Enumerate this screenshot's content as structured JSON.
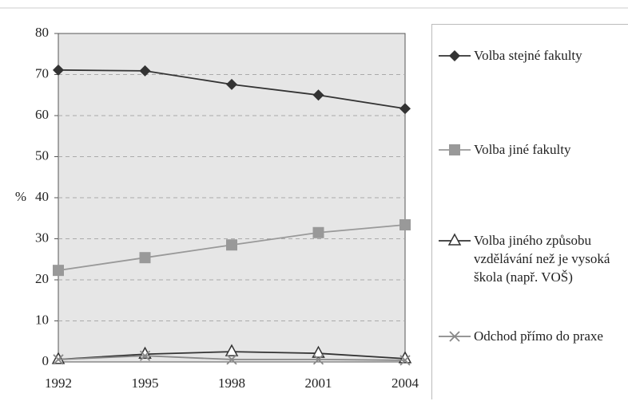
{
  "chart_data": {
    "type": "line",
    "y_label": "%",
    "categories": [
      "1992",
      "1995",
      "1998",
      "2001",
      "2004"
    ],
    "series": [
      {
        "name": "Volba stejné fakulty",
        "color": "#333333",
        "marker": "diamond",
        "values": [
          71.1,
          70.9,
          67.6,
          65,
          61.7
        ]
      },
      {
        "name": "Volba jiné fakulty",
        "color": "#999999",
        "marker": "square",
        "values": [
          22.3,
          25.4,
          28.5,
          31.5,
          33.4
        ]
      },
      {
        "name": "Volba jiného způsobu vzdělávání než je vysoká škola (např. VOŠ)",
        "color": "#333333",
        "marker": "triangle",
        "values": [
          0.6,
          1.9,
          2.5,
          2.1,
          0.8
        ]
      },
      {
        "name": "Odchod přímo do praxe",
        "color": "#888888",
        "marker": "x",
        "values": [
          0.6,
          1.5,
          0.6,
          0.6,
          0.4
        ]
      }
    ],
    "ylim": [
      0,
      80
    ],
    "yticks": [
      0,
      10,
      20,
      30,
      40,
      50,
      60,
      70,
      80
    ],
    "grid": true
  }
}
